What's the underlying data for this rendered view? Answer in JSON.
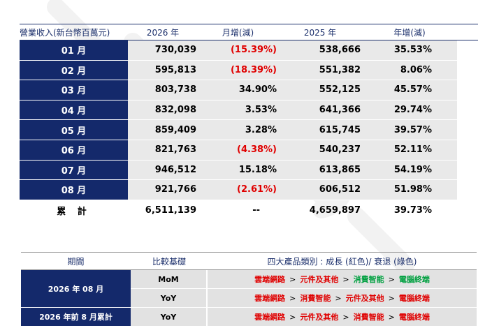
{
  "revenue_table": {
    "headers": [
      "營業收入(新台幣百萬元)",
      "2026 年",
      "月增(減)",
      "2025 年",
      "年增(減)"
    ],
    "rows": [
      {
        "month": "01 月",
        "y2026": "730,039",
        "mom": "(15.39%)",
        "mom_neg": true,
        "y2025": "538,666",
        "yoy": "35.53%"
      },
      {
        "month": "02 月",
        "y2026": "595,813",
        "mom": "(18.39%)",
        "mom_neg": true,
        "y2025": "551,382",
        "yoy": "8.06%"
      },
      {
        "month": "03 月",
        "y2026": "803,738",
        "mom": "34.90%",
        "mom_neg": false,
        "y2025": "552,125",
        "yoy": "45.57%"
      },
      {
        "month": "04 月",
        "y2026": "832,098",
        "mom": "3.53%",
        "mom_neg": false,
        "y2025": "641,366",
        "yoy": "29.74%"
      },
      {
        "month": "05 月",
        "y2026": "859,409",
        "mom": "3.28%",
        "mom_neg": false,
        "y2025": "615,745",
        "yoy": "39.57%"
      },
      {
        "month": "06 月",
        "y2026": "821,763",
        "mom": "(4.38%)",
        "mom_neg": true,
        "y2025": "540,237",
        "yoy": "52.11%"
      },
      {
        "month": "07 月",
        "y2026": "946,512",
        "mom": "15.18%",
        "mom_neg": false,
        "y2025": "613,865",
        "yoy": "54.19%"
      },
      {
        "month": "08 月",
        "y2026": "921,766",
        "mom": "(2.61%)",
        "mom_neg": true,
        "y2025": "606,512",
        "yoy": "51.98%"
      }
    ],
    "total": {
      "label": "累 計",
      "y2026": "6,511,139",
      "mom": "--",
      "y2025": "4,659,897",
      "yoy": "39.73%"
    }
  },
  "category_table": {
    "headers": [
      "期間",
      "比較基礎",
      "四大產品類別 : 成長 (紅色)/ 衰退 (綠色)"
    ],
    "separator": ">",
    "groups": [
      {
        "period": "2026 年 08 月",
        "lines": [
          {
            "basis": "MoM",
            "items": [
              {
                "name": "雲端網路",
                "trend": "up"
              },
              {
                "name": "元件及其他",
                "trend": "up"
              },
              {
                "name": "消費智能",
                "trend": "down"
              },
              {
                "name": "電腦終端",
                "trend": "down"
              }
            ]
          },
          {
            "basis": "YoY",
            "items": [
              {
                "name": "雲端網路",
                "trend": "up"
              },
              {
                "name": "消費智能",
                "trend": "up"
              },
              {
                "name": "元件及其他",
                "trend": "up"
              },
              {
                "name": "電腦終端",
                "trend": "up"
              }
            ]
          }
        ]
      },
      {
        "period": "2026 年前 8 月累計",
        "lines": [
          {
            "basis": "YoY",
            "items": [
              {
                "name": "雲端網路",
                "trend": "up"
              },
              {
                "name": "元件及其他",
                "trend": "up"
              },
              {
                "name": "消費智能",
                "trend": "up"
              },
              {
                "name": "電腦終端",
                "trend": "up"
              }
            ]
          }
        ]
      }
    ]
  },
  "colors": {
    "header_navy": "#14296b",
    "growth": "#e00000",
    "decline": "#00a040",
    "cell_gray": "#e9e9e9"
  }
}
